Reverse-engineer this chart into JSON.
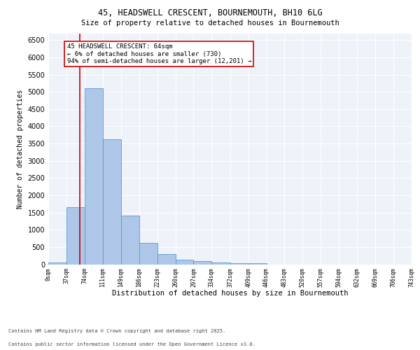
{
  "title_line1": "45, HEADSWELL CRESCENT, BOURNEMOUTH, BH10 6LG",
  "title_line2": "Size of property relative to detached houses in Bournemouth",
  "xlabel": "Distribution of detached houses by size in Bournemouth",
  "ylabel": "Number of detached properties",
  "footnote1": "Contains HM Land Registry data © Crown copyright and database right 2025.",
  "footnote2": "Contains public sector information licensed under the Open Government Licence v3.0.",
  "bar_edges": [
    0,
    37,
    74,
    111,
    149,
    186,
    223,
    260,
    297,
    334,
    372,
    409,
    446,
    483,
    520,
    557,
    594,
    632,
    669,
    706,
    743
  ],
  "bar_heights": [
    60,
    1650,
    5100,
    3620,
    1420,
    620,
    300,
    130,
    90,
    60,
    40,
    30,
    0,
    0,
    0,
    0,
    0,
    0,
    0,
    0
  ],
  "bar_color": "#aec6e8",
  "bar_edgecolor": "#5b9bd5",
  "vline_x": 64,
  "vline_color": "#cc0000",
  "annotation_text": "45 HEADSWELL CRESCENT: 64sqm\n← 6% of detached houses are smaller (730)\n94% of semi-detached houses are larger (12,201) →",
  "ylim": [
    0,
    6700
  ],
  "xlim": [
    0,
    743
  ],
  "yticks": [
    0,
    500,
    1000,
    1500,
    2000,
    2500,
    3000,
    3500,
    4000,
    4500,
    5000,
    5500,
    6000,
    6500
  ],
  "bg_color": "#eef2f9",
  "grid_color": "#ffffff",
  "box_edgecolor": "#cc0000",
  "title1_fontsize": 8.5,
  "title2_fontsize": 7.5,
  "ylabel_fontsize": 7.0,
  "xlabel_fontsize": 7.5,
  "ytick_fontsize": 7.0,
  "xtick_fontsize": 5.5,
  "annot_fontsize": 6.5,
  "footnote_fontsize": 5.0
}
